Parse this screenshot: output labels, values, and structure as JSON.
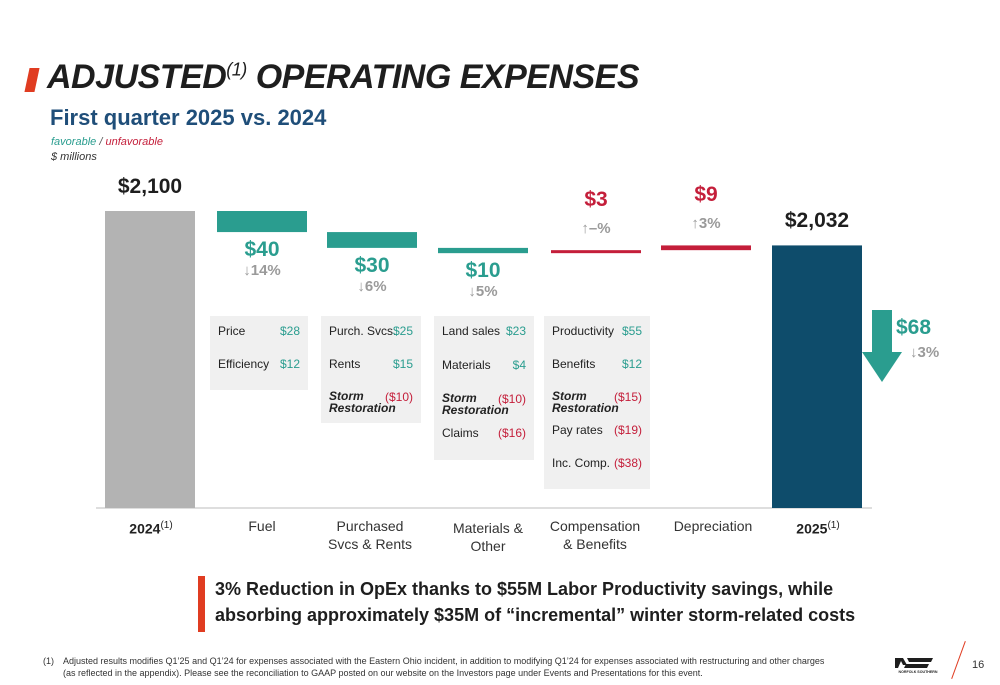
{
  "header": {
    "title": "ADJUSTED",
    "title_sup": "(1)",
    "title_rest": " OPERATING EXPENSES",
    "subtitle": "First quarter 2025 vs. 2024",
    "legend_favorable": "favorable",
    "legend_sep": "/",
    "legend_unfavorable": "unfavorable",
    "units": "$ millions"
  },
  "colors": {
    "start_bar": "#b3b3b3",
    "favorable": "#2a9d8f",
    "unfavorable": "#c41e3a",
    "end_bar": "#0e4c6b",
    "percent_text": "#9a9a9a"
  },
  "chart_data": {
    "type": "bar",
    "subtype": "waterfall",
    "units": "$ millions",
    "categories": [
      "2024(1)",
      "Fuel",
      "Purchased Svcs & Rents",
      "Materials & Other",
      "Compensation & Benefits",
      "Depreciation",
      "2025(1)"
    ],
    "bars": [
      {
        "category": "2024",
        "category_sup": "(1)",
        "kind": "total",
        "value": 2100,
        "label": "$2,100",
        "pct": ""
      },
      {
        "category": "Fuel",
        "kind": "decrease",
        "value": -40,
        "label": "$40",
        "pct": "↓14%"
      },
      {
        "category": "Purchased Svcs & Rents",
        "kind": "decrease",
        "value": -30,
        "label": "$30",
        "pct": "↓6%"
      },
      {
        "category": "Materials & Other",
        "kind": "decrease",
        "value": -10,
        "label": "$10",
        "pct": "↓5%"
      },
      {
        "category": "Compensation & Benefits",
        "kind": "increase",
        "value": 3,
        "label": "$3",
        "pct": "↑–%"
      },
      {
        "category": "Depreciation",
        "kind": "increase",
        "value": 9,
        "label": "$9",
        "pct": "↑3%"
      },
      {
        "category": "2025",
        "category_sup": "(1)",
        "kind": "total",
        "value": 2032,
        "label": "$2,032",
        "pct": ""
      }
    ],
    "total_change": {
      "label": "$68",
      "pct": "↓3%",
      "direction": "down"
    },
    "details": [
      {
        "category": "Fuel",
        "items": [
          {
            "name": "Price",
            "value": "$28",
            "favorable": true
          },
          {
            "name": "Efficiency",
            "value": "$12",
            "favorable": true
          }
        ]
      },
      {
        "category": "Purchased Svcs & Rents",
        "items": [
          {
            "name": "Purch. Svcs.",
            "value": "$25",
            "favorable": true
          },
          {
            "name": "Rents",
            "value": "$15",
            "favorable": true
          },
          {
            "name": "Storm Restoration",
            "value": "($10)",
            "favorable": false
          }
        ]
      },
      {
        "category": "Materials & Other",
        "items": [
          {
            "name": "Land sales",
            "value": "$23",
            "favorable": true
          },
          {
            "name": "Materials",
            "value": "$4",
            "favorable": true
          },
          {
            "name": "Storm Restoration",
            "value": "($10)",
            "favorable": false
          },
          {
            "name": "Claims",
            "value": "($16)",
            "favorable": false
          }
        ]
      },
      {
        "category": "Compensation & Benefits",
        "items": [
          {
            "name": "Productivity",
            "value": "$55",
            "favorable": true
          },
          {
            "name": "Benefits",
            "value": "$12",
            "favorable": true
          },
          {
            "name": "Storm Restoration",
            "value": "($15)",
            "favorable": false
          },
          {
            "name": "Pay rates",
            "value": "($19)",
            "favorable": false
          },
          {
            "name": "Inc. Comp.",
            "value": "($38)",
            "favorable": false
          }
        ]
      }
    ]
  },
  "axis_labels": {
    "c0": "2024",
    "c0_sup": "(1)",
    "c1": "Fuel",
    "c2_line1": "Purchased",
    "c2_line2": "Svcs & Rents",
    "c3_line1": "Materials &",
    "c3_line2": "Other",
    "c4_line1": "Compensation",
    "c4_line2": "& Benefits",
    "c5": "Depreciation",
    "c6": "2025",
    "c6_sup": "(1)"
  },
  "callout": {
    "line1": "3% Reduction in OpEx thanks to $55M Labor Productivity savings, while",
    "line2": "absorbing approximately $35M of “incremental” winter storm-related costs"
  },
  "footnote": {
    "num": "(1)",
    "line1": "Adjusted results modifies Q1’25 and Q1’24 for expenses associated with the Eastern Ohio incident, in addition to modifying Q1’24 for expenses associated with restructuring and other charges",
    "line2": "(as reflected in the appendix). Please see the reconciliation to GAAP posted on our website on the Investors page under Events and Presentations for this event."
  },
  "footer": {
    "logo_text": "NORFOLK SOUTHERN",
    "logo_mark": "NS",
    "page_number": "16"
  }
}
